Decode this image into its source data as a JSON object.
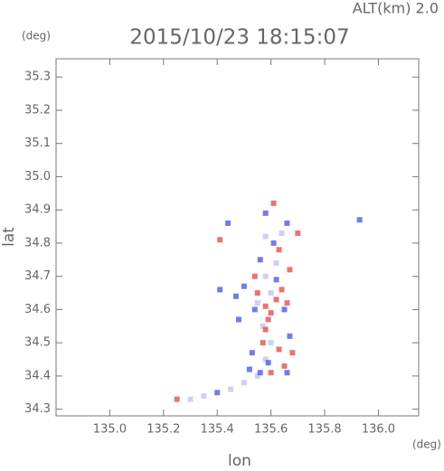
{
  "chart_data": {
    "type": "scatter",
    "title": "2015/10/23 18:15:07",
    "subtitle": "ALT(km) 2.0",
    "x_label": "lon",
    "y_label": "lat",
    "x_unit": "(deg)",
    "y_unit": "(deg)",
    "xlim": [
      134.8,
      136.15
    ],
    "ylim": [
      34.28,
      35.355
    ],
    "xticks": [
      {
        "value": 135,
        "label": "135.0"
      },
      135.2,
      135.4,
      135.6,
      135.8,
      {
        "value": 136,
        "label": "136.0"
      }
    ],
    "yticks": [
      34.3,
      34.4,
      34.5,
      34.6,
      34.7,
      34.8,
      34.9,
      {
        "value": 35,
        "label": "35.0"
      },
      35.1,
      35.2,
      35.3
    ],
    "series": [
      {
        "color": "#c8c8f0",
        "x": [
          135.45,
          135.5,
          135.55,
          135.58,
          135.6,
          135.57,
          135.55,
          135.6,
          135.58,
          135.62,
          135.58,
          135.64,
          135.35,
          135.3
        ],
        "values": [
          34.36,
          34.38,
          34.4,
          34.45,
          34.5,
          34.55,
          34.62,
          34.65,
          34.7,
          34.74,
          34.82,
          34.83,
          34.34,
          34.33
        ]
      },
      {
        "color": "#e85a5a",
        "x": [
          135.25,
          135.58,
          135.6,
          135.62,
          135.55,
          135.66,
          135.59,
          135.63,
          135.6,
          135.65,
          135.57,
          135.68,
          135.61,
          135.7,
          135.63,
          135.54,
          135.67,
          135.41,
          135.58,
          135.64
        ],
        "values": [
          34.33,
          34.61,
          34.59,
          34.63,
          34.65,
          34.62,
          34.57,
          34.48,
          34.41,
          34.43,
          34.5,
          34.47,
          34.92,
          34.83,
          34.78,
          34.7,
          34.72,
          34.81,
          34.54,
          34.66
        ]
      },
      {
        "color": "#5a64e6",
        "x": [
          135.93,
          135.52,
          135.56,
          135.47,
          135.41,
          135.5,
          135.65,
          135.62,
          135.56,
          135.61,
          135.66,
          135.53,
          135.67,
          135.59,
          135.58,
          135.44,
          135.66,
          135.48,
          135.4,
          135.54
        ],
        "values": [
          34.87,
          34.42,
          34.41,
          34.64,
          34.66,
          34.67,
          34.6,
          34.69,
          34.75,
          34.8,
          34.86,
          34.47,
          34.52,
          34.44,
          34.89,
          34.86,
          34.41,
          34.57,
          34.35,
          34.6
        ]
      }
    ]
  }
}
